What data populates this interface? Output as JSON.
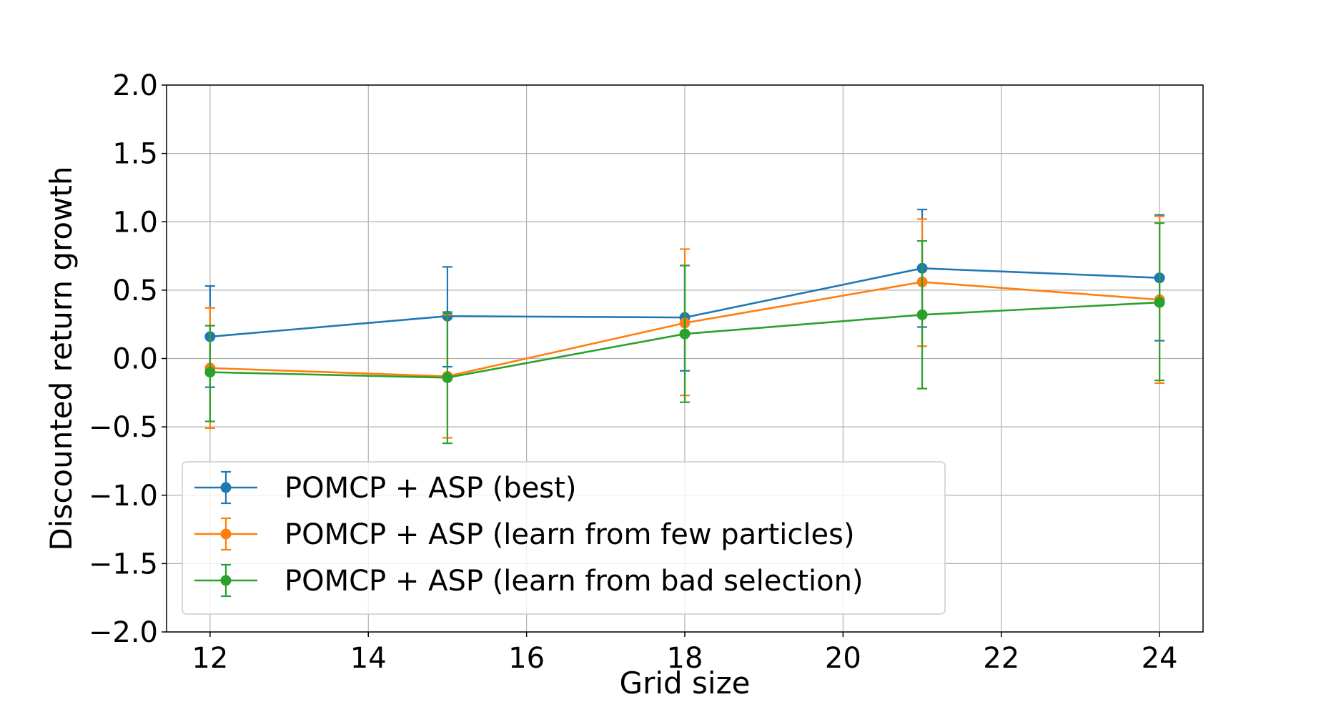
{
  "chart_data": {
    "type": "line",
    "xlabel": "Grid size",
    "ylabel": "Discounted return growth",
    "xlim": [
      11.45,
      24.55
    ],
    "ylim": [
      -2.0,
      2.0
    ],
    "xticks": [
      "12",
      "14",
      "16",
      "18",
      "20",
      "22",
      "24"
    ],
    "yticks": [
      "−2.0",
      "−1.5",
      "−1.0",
      "−0.5",
      "0.0",
      "0.5",
      "1.0",
      "1.5",
      "2.0"
    ],
    "grid": true,
    "legend_position": "lower-left",
    "x": [
      12,
      15,
      18,
      21,
      24
    ],
    "series": [
      {
        "name": "POMCP + ASP (best)",
        "color": "#1f77b4",
        "values": [
          0.16,
          0.31,
          0.3,
          0.66,
          0.59
        ],
        "err_low": [
          -0.21,
          -0.06,
          -0.09,
          0.23,
          0.13
        ],
        "err_high": [
          0.53,
          0.67,
          0.68,
          1.09,
          1.05
        ]
      },
      {
        "name": "POMCP + ASP (learn from few particles)",
        "color": "#ff7f0e",
        "values": [
          -0.07,
          -0.13,
          0.26,
          0.56,
          0.43
        ],
        "err_low": [
          -0.51,
          -0.58,
          -0.27,
          0.09,
          -0.18
        ],
        "err_high": [
          0.37,
          0.32,
          0.8,
          1.02,
          1.04
        ]
      },
      {
        "name": "POMCP + ASP (learn from bad selection)",
        "color": "#2ca02c",
        "values": [
          -0.1,
          -0.14,
          0.18,
          0.32,
          0.41
        ],
        "err_low": [
          -0.46,
          -0.62,
          -0.32,
          -0.22,
          -0.16
        ],
        "err_high": [
          0.24,
          0.34,
          0.68,
          0.86,
          0.99
        ]
      }
    ]
  }
}
